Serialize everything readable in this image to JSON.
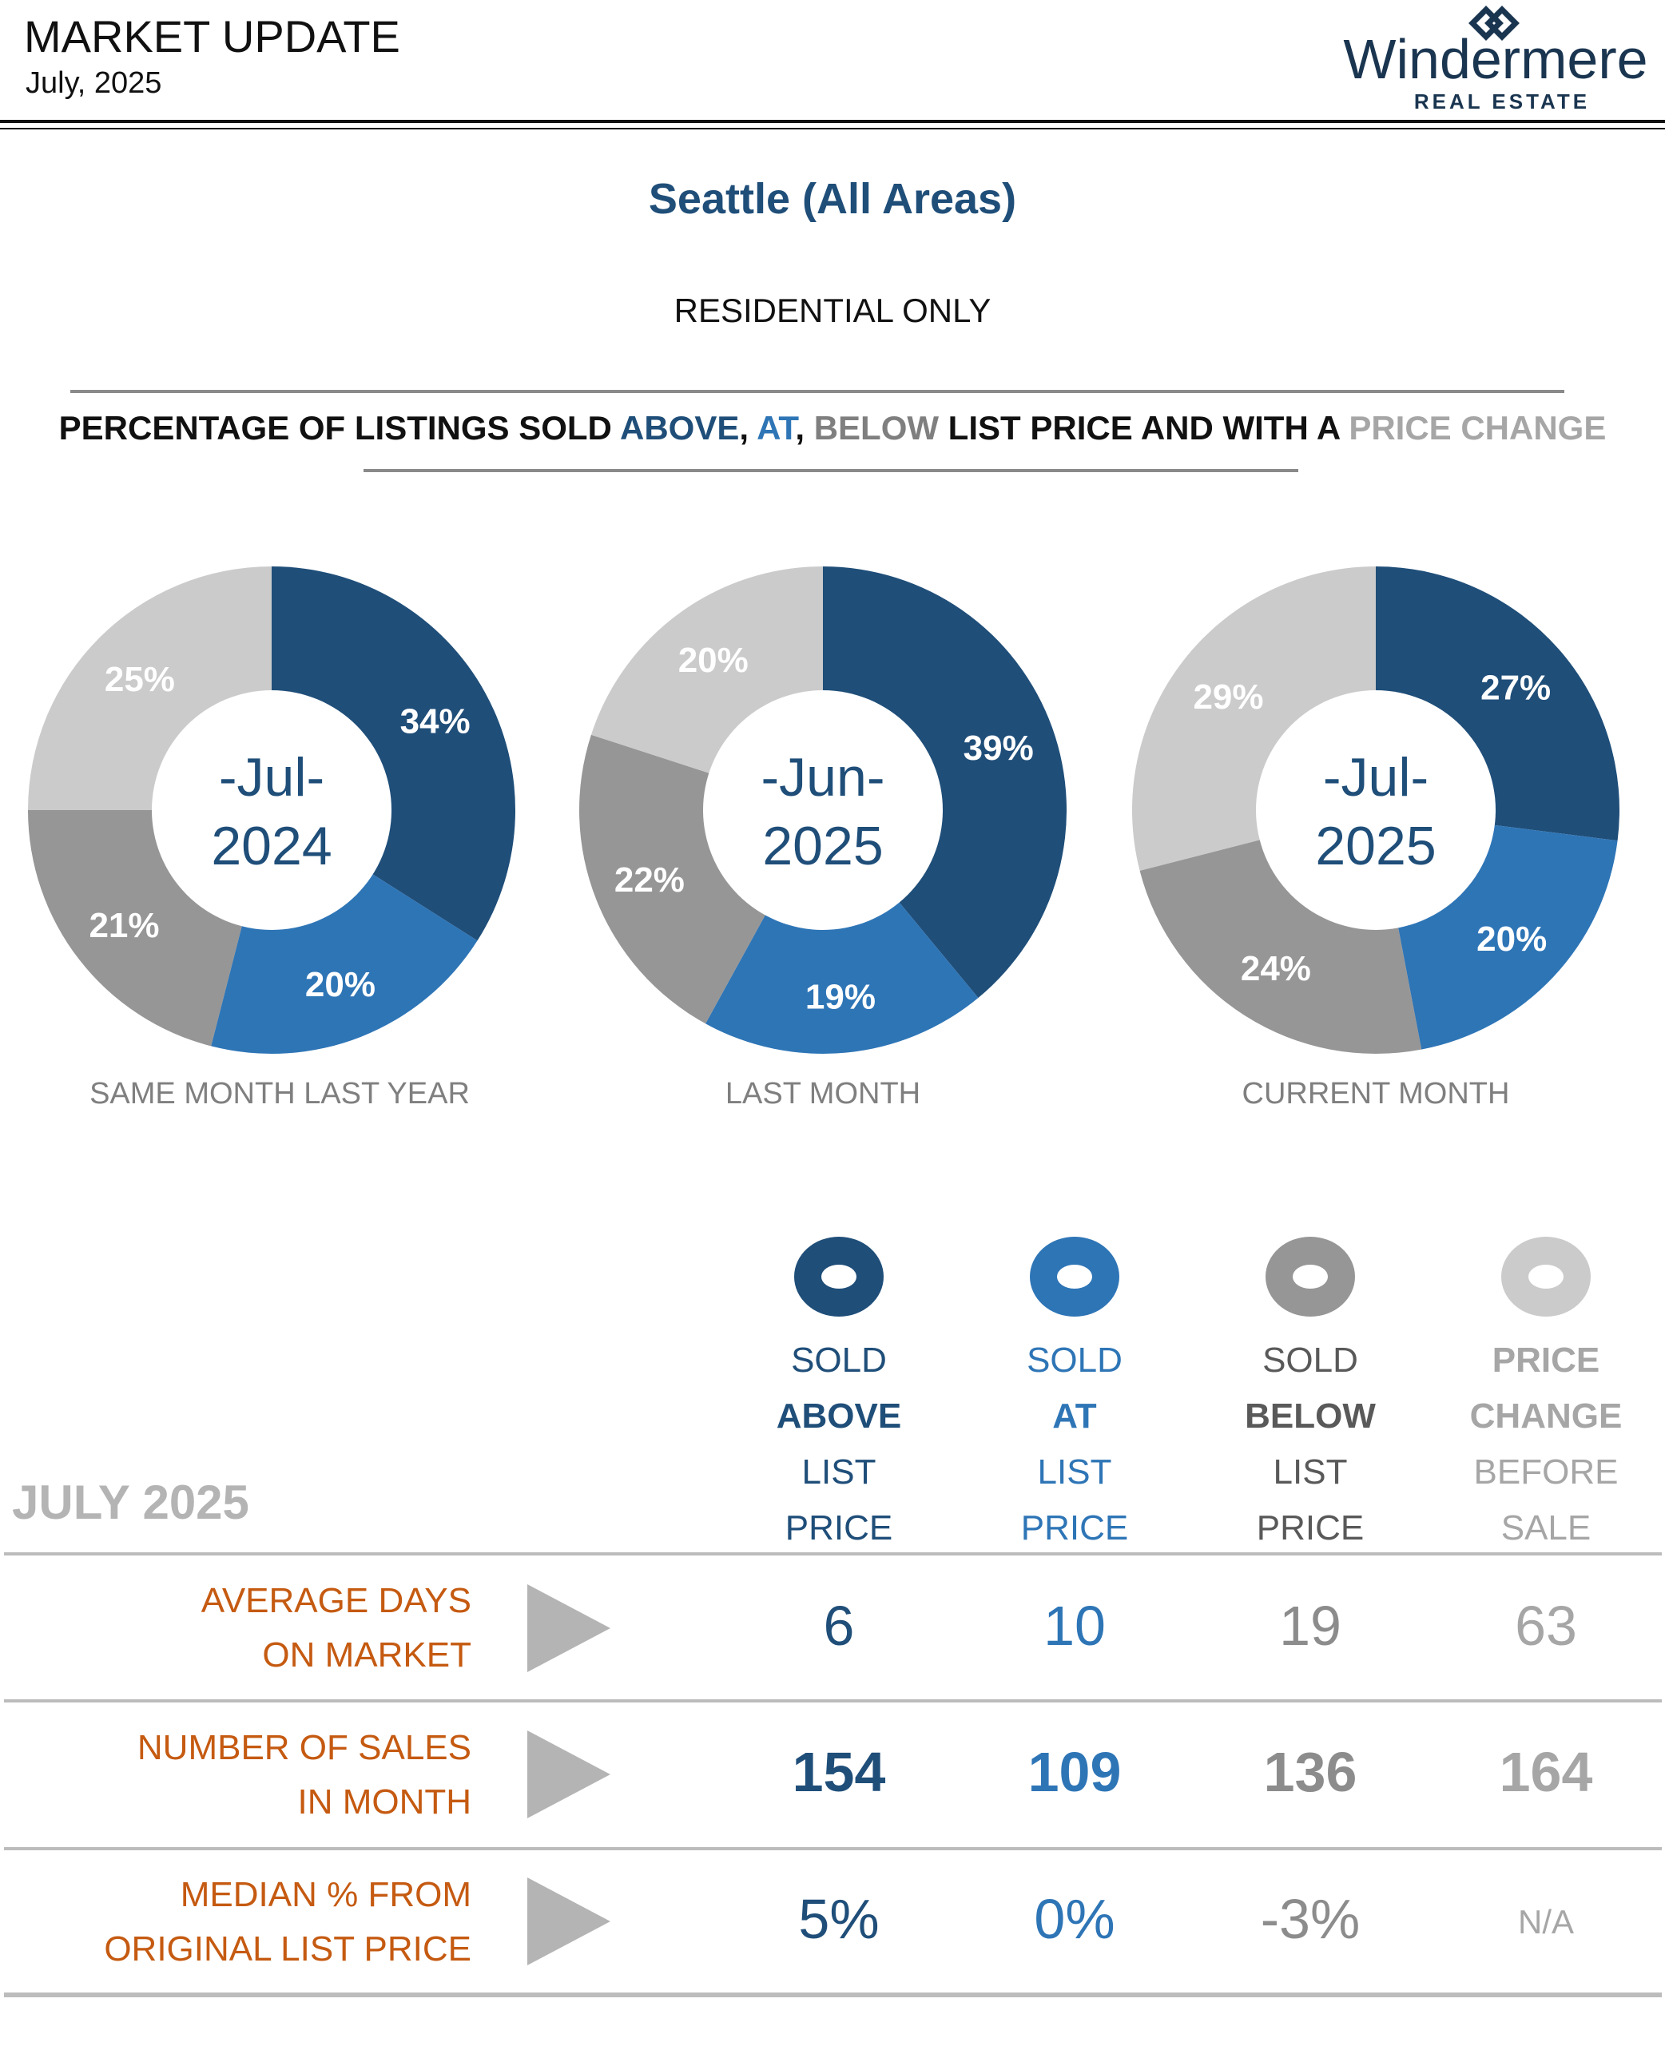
{
  "header": {
    "title": "MARKET UPDATE",
    "date": "July, 2025",
    "logo_name": "Windermere",
    "logo_sub": "REAL ESTATE"
  },
  "city": "Seattle (All Areas)",
  "subhead": "RESIDENTIAL ONLY",
  "heading": {
    "part1": "PERCENTAGE OF LISTINGS SOLD ",
    "above": "ABOVE",
    "comma1": ", ",
    "at": "AT",
    "comma2": ", ",
    "below": "BELOW",
    "part2": " LIST PRICE AND WITH A ",
    "change": "PRICE CHANGE"
  },
  "colors": {
    "above": "#1f4e79",
    "at": "#2e75b6",
    "below": "#969696",
    "change": "#cbcbcb",
    "label_orange": "#c55a11"
  },
  "chart_data": [
    {
      "type": "pie",
      "center_line1": "-Jul-",
      "center_line2": "2024",
      "caption": "SAME MONTH LAST YEAR",
      "slices": [
        {
          "name": "Sold Above List Price",
          "value": 34,
          "label": "34%"
        },
        {
          "name": "Sold At List Price",
          "value": 20,
          "label": "20%"
        },
        {
          "name": "Sold Below List Price",
          "value": 21,
          "label": "21%"
        },
        {
          "name": "Price Change Before Sale",
          "value": 25,
          "label": "25%"
        }
      ]
    },
    {
      "type": "pie",
      "center_line1": "-Jun-",
      "center_line2": "2025",
      "caption": "LAST MONTH",
      "slices": [
        {
          "name": "Sold Above List Price",
          "value": 39,
          "label": "39%"
        },
        {
          "name": "Sold At List Price",
          "value": 19,
          "label": "19%"
        },
        {
          "name": "Sold Below List Price",
          "value": 22,
          "label": "22%"
        },
        {
          "name": "Price Change Before Sale",
          "value": 20,
          "label": "20%"
        }
      ]
    },
    {
      "type": "pie",
      "center_line1": "-Jul-",
      "center_line2": "2025",
      "caption": "CURRENT MONTH",
      "slices": [
        {
          "name": "Sold Above List Price",
          "value": 27,
          "label": "27%"
        },
        {
          "name": "Sold At List Price",
          "value": 20,
          "label": "20%"
        },
        {
          "name": "Sold Below List Price",
          "value": 24,
          "label": "24%"
        },
        {
          "name": "Price Change Before Sale",
          "value": 29,
          "label": "29%"
        }
      ]
    }
  ],
  "table": {
    "month_label": "JULY 2025",
    "columns": [
      {
        "l1": "SOLD",
        "l2": "ABOVE",
        "l3": "LIST",
        "l4": "PRICE"
      },
      {
        "l1": "SOLD",
        "l2": "AT",
        "l3": "LIST",
        "l4": "PRICE"
      },
      {
        "l1": "SOLD",
        "l2": "BELOW",
        "l3": "LIST",
        "l4": "PRICE"
      },
      {
        "l1": "PRICE",
        "l2": "CHANGE",
        "l3": "BEFORE",
        "l4": "SALE"
      }
    ],
    "rows": [
      {
        "label1": "AVERAGE DAYS",
        "label2": "ON MARKET",
        "values": [
          "6",
          "10",
          "19",
          "63"
        ]
      },
      {
        "label1": "NUMBER OF SALES",
        "label2": "IN MONTH",
        "values": [
          "154",
          "109",
          "136",
          "164"
        ]
      },
      {
        "label1": "MEDIAN % FROM",
        "label2": "ORIGINAL LIST PRICE",
        "values": [
          "5%",
          "0%",
          "-3%",
          "N/A"
        ]
      }
    ]
  }
}
